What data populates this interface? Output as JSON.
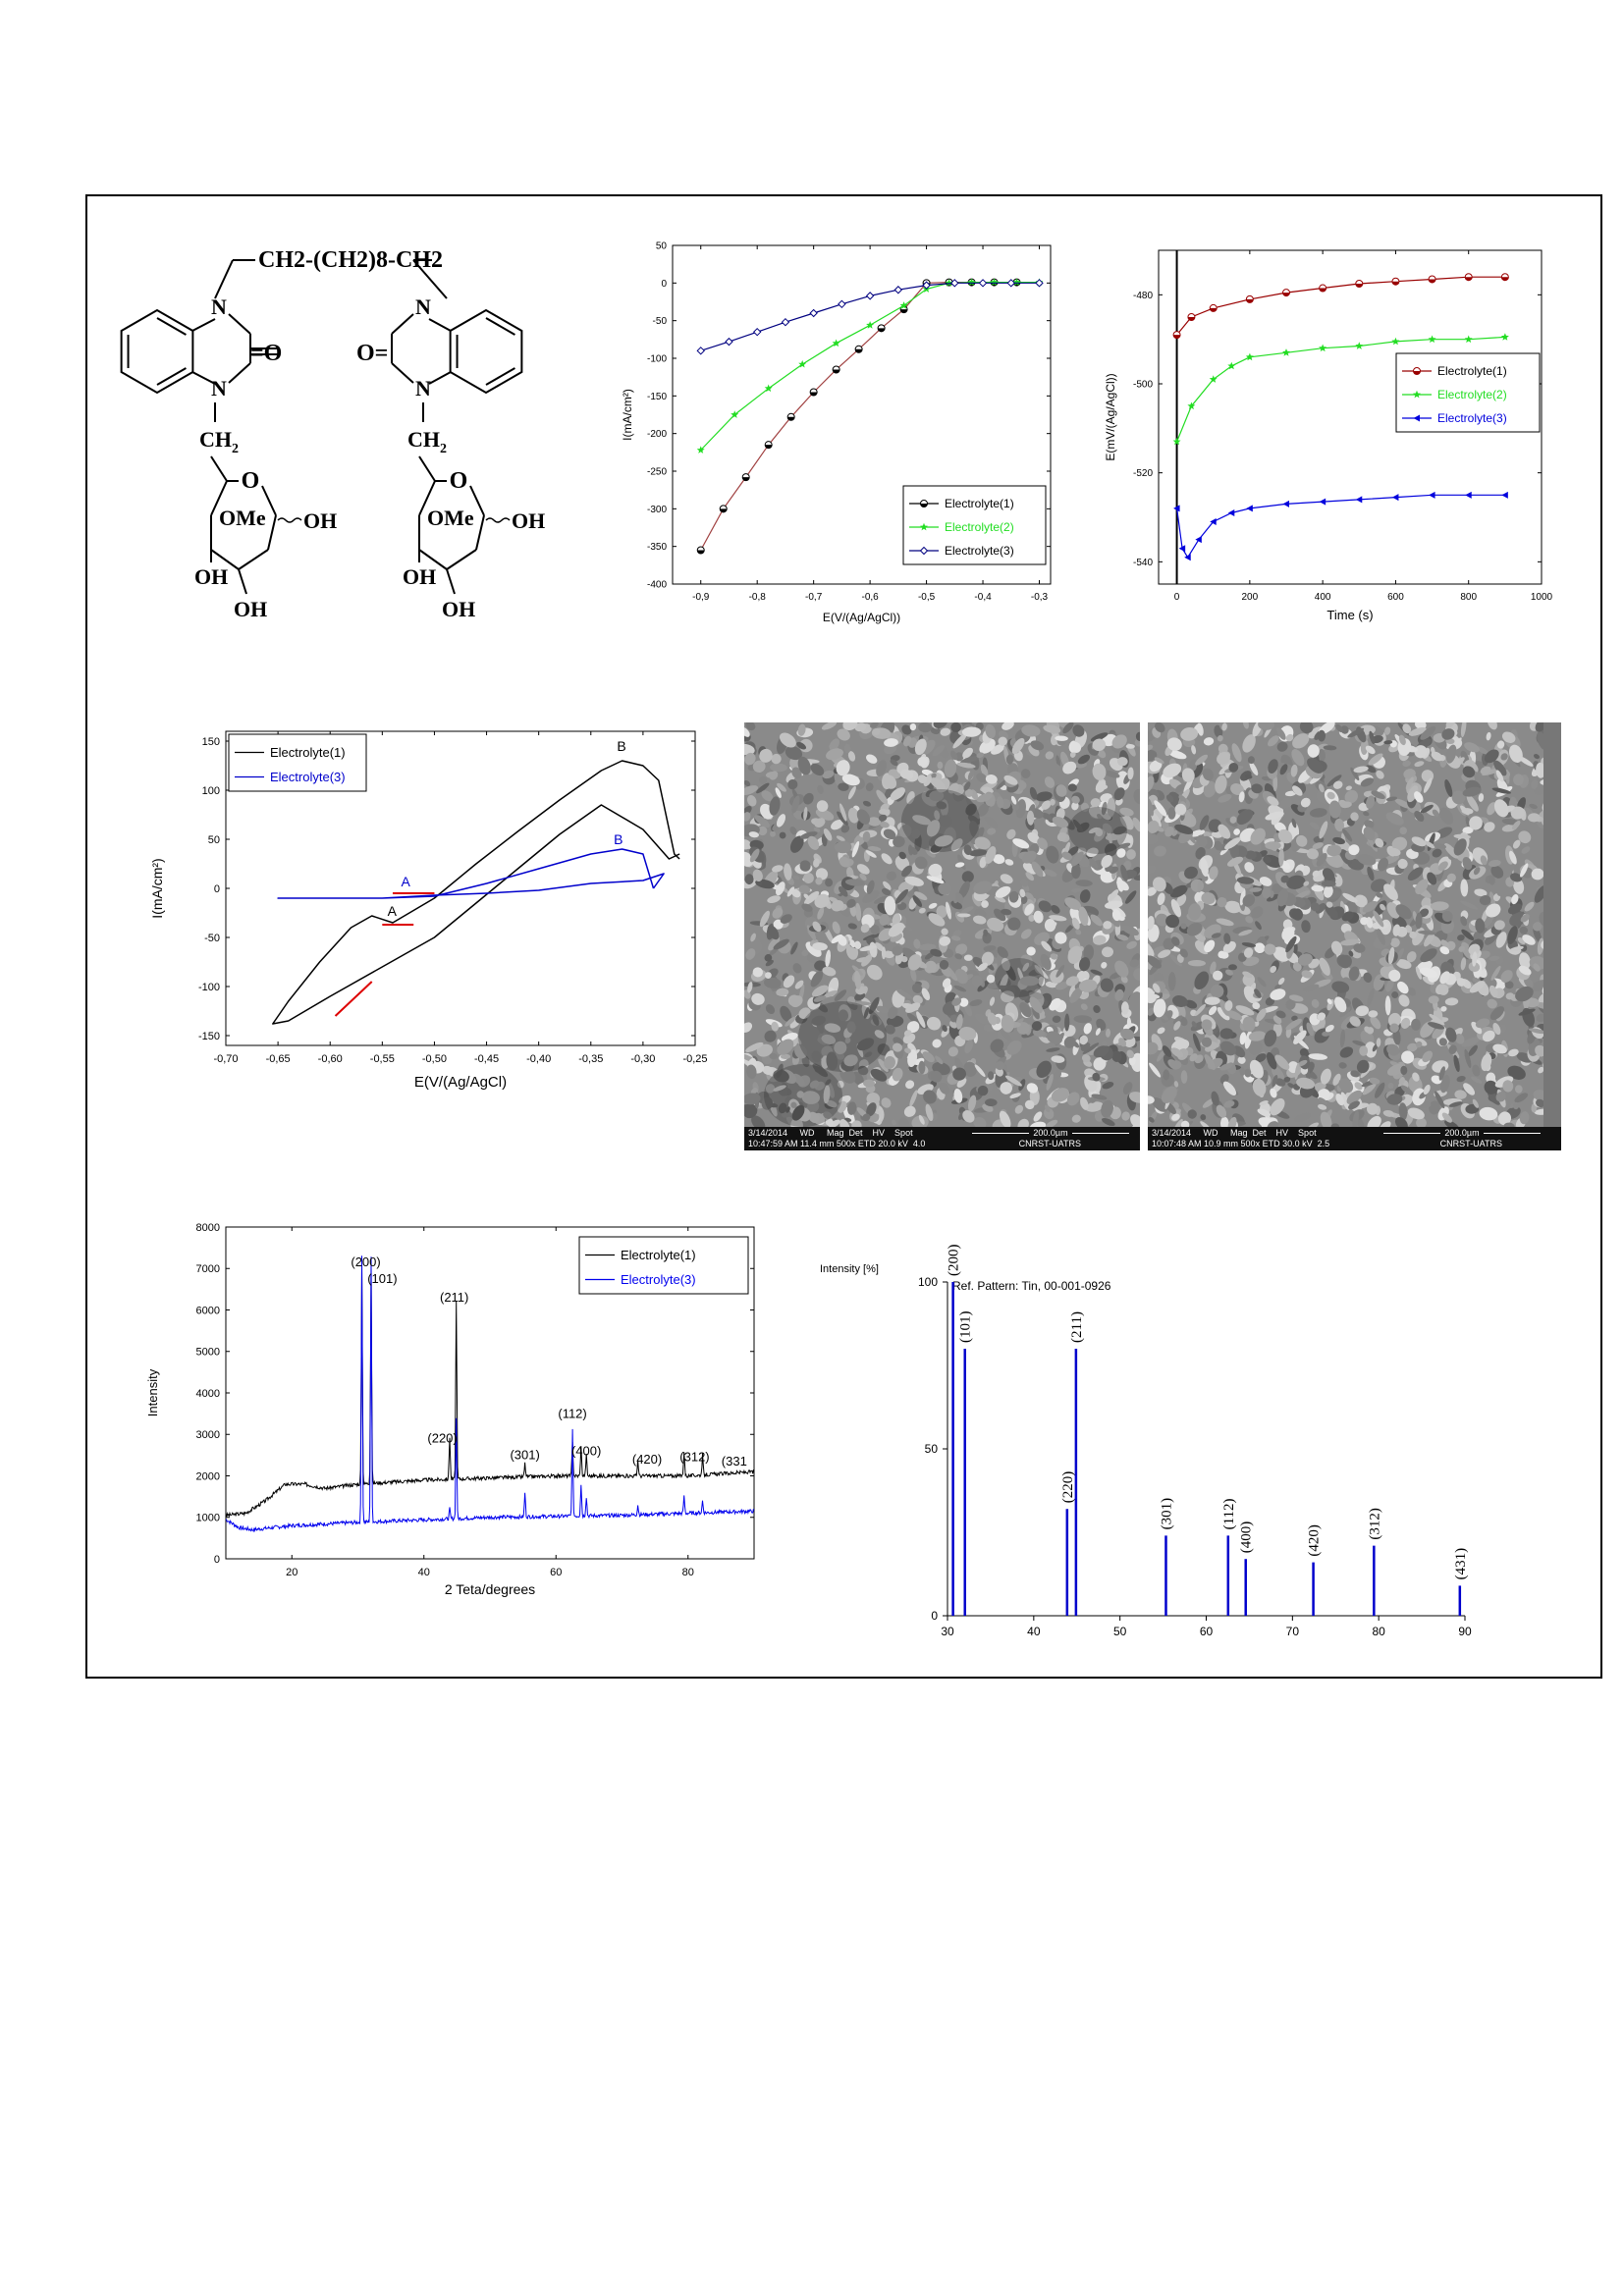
{
  "structure": {
    "chain": "CH2-(CH2)8-CH2",
    "n_label": "N",
    "o_label": "O",
    "ome_label": "OMe",
    "oh_label": "OH",
    "ch2_label": "CH2"
  },
  "polarization": {
    "ylabel": "I(mA/cm²)",
    "xlabel": "E(V/(Ag/AgCl))",
    "legend": [
      "Electrolyte(1)",
      "Electrolyte(2)",
      "Electrolyte(3)"
    ],
    "colors": [
      "#000000",
      "#22dd22",
      "#000080"
    ]
  },
  "potential_time": {
    "ylabel": "E(mV/(Ag/AgCl))",
    "xlabel": "Time (s)",
    "legend": [
      "Electrolyte(1)",
      "Electrolyte(2)",
      "Electrolyte(3)"
    ],
    "colors": [
      "#990000",
      "#22dd22",
      "#0000dd"
    ]
  },
  "cv": {
    "ylabel": "I(mA/cm²)",
    "xlabel": "E(V/(Ag/AgCl)",
    "legend": [
      "Electrolyte(1)",
      "Electrolyte(3)"
    ],
    "colors": [
      "#000000",
      "#0000cc"
    ],
    "peak_labels": [
      "A",
      "B"
    ]
  },
  "sem": [
    {
      "row1": "3/14/2014     WD     Mag  Det    HV    Spot",
      "row2": "10:47:59 AM 11.4 mm 500x ETD 20.0 kV  4.0",
      "scale": "200.0µm",
      "org": "CNRST-UATRS"
    },
    {
      "row1": "3/14/2014     WD     Mag  Det    HV    Spot",
      "row2": "10:07:48 AM 10.9 mm 500x ETD 30.0 kV  2.5",
      "scale": "200.0µm",
      "org": "CNRST-UATRS"
    }
  ],
  "xrd": {
    "ylabel": "Intensity",
    "xlabel": "2 Teta/degrees",
    "legend": [
      "Electrolyte(1)",
      "Electrolyte(3)"
    ],
    "colors": [
      "#000000",
      "#0000ee"
    ],
    "peak_labels": [
      "(200)",
      "(101)",
      "(211)",
      "(220)",
      "(301)",
      "(112)",
      "(400)",
      "(420)",
      "(312)",
      "(331"
    ]
  },
  "ref_pattern": {
    "ylabel": "Intensity [%]",
    "title": "Ref. Pattern: Tin, 00-001-0926",
    "color": "#0000cc"
  },
  "chart_data": [
    {
      "type": "line",
      "xlabel": "E(V/(Ag/AgCl))",
      "ylabel": "I(mA/cm²)",
      "xlim": [
        -0.95,
        -0.28
      ],
      "ylim": [
        -400,
        50
      ],
      "xticks": [
        "-0,9",
        "-0,8",
        "-0,7",
        "-0,6",
        "-0,5",
        "-0,4",
        "-0,3"
      ],
      "yticks": [
        "50",
        "0",
        "-50",
        "-100",
        "-150",
        "-200",
        "-250",
        "-300",
        "-350",
        "-400"
      ],
      "legend_position": "bottom-right",
      "series": [
        {
          "name": "Electrolyte(1)",
          "x": [
            -0.9,
            -0.86,
            -0.82,
            -0.78,
            -0.74,
            -0.7,
            -0.66,
            -0.62,
            -0.58,
            -0.54,
            -0.5,
            -0.46,
            -0.42,
            -0.38,
            -0.34
          ],
          "y": [
            -355,
            -300,
            -258,
            -215,
            -178,
            -145,
            -115,
            -88,
            -60,
            -35,
            0,
            1,
            1,
            1,
            1
          ]
        },
        {
          "name": "Electrolyte(2)",
          "x": [
            -0.9,
            -0.84,
            -0.78,
            -0.72,
            -0.66,
            -0.6,
            -0.54,
            -0.5,
            -0.46,
            -0.42,
            -0.38,
            -0.34,
            -0.3
          ],
          "y": [
            -222,
            -175,
            -140,
            -108,
            -80,
            -56,
            -30,
            -8,
            0,
            1,
            1,
            1,
            1
          ]
        },
        {
          "name": "Electrolyte(3)",
          "x": [
            -0.9,
            -0.85,
            -0.8,
            -0.75,
            -0.7,
            -0.65,
            -0.6,
            -0.55,
            -0.5,
            -0.45,
            -0.4,
            -0.35,
            -0.3
          ],
          "y": [
            -90,
            -78,
            -65,
            -52,
            -40,
            -28,
            -17,
            -9,
            -3,
            0,
            0,
            0,
            0
          ]
        }
      ]
    },
    {
      "type": "line",
      "xlabel": "Time (s)",
      "ylabel": "E(mV/(Ag/AgCl))",
      "xlim": [
        -50,
        1000
      ],
      "ylim": [
        -545,
        -470
      ],
      "xticks": [
        "0",
        "200",
        "400",
        "600",
        "800",
        "1000"
      ],
      "yticks": [
        "-480",
        "-500",
        "-520",
        "-540"
      ],
      "legend_position": "right",
      "series": [
        {
          "name": "Electrolyte(1)",
          "x": [
            0,
            40,
            100,
            200,
            300,
            400,
            500,
            600,
            700,
            800,
            900
          ],
          "y": [
            -489,
            -485,
            -483,
            -481,
            -479.5,
            -478.5,
            -477.5,
            -477,
            -476.5,
            -476,
            -476
          ]
        },
        {
          "name": "Electrolyte(2)",
          "x": [
            0,
            40,
            100,
            150,
            200,
            300,
            400,
            500,
            600,
            700,
            800,
            900
          ],
          "y": [
            -513,
            -505,
            -499,
            -496,
            -494,
            -493,
            -492,
            -491.5,
            -490.5,
            -490,
            -490,
            -489.5
          ]
        },
        {
          "name": "Electrolyte(3)",
          "x": [
            0,
            15,
            30,
            60,
            100,
            150,
            200,
            300,
            400,
            500,
            600,
            700,
            800,
            900
          ],
          "y": [
            -528,
            -537,
            -539,
            -535,
            -531,
            -529,
            -528,
            -527,
            -526.5,
            -526,
            -525.5,
            -525,
            -525,
            -525
          ]
        }
      ]
    },
    {
      "type": "line",
      "xlabel": "E(V/(Ag/AgCl)",
      "ylabel": "I(mA/cm²)",
      "xlim": [
        -0.7,
        -0.25
      ],
      "ylim": [
        -160,
        160
      ],
      "xticks": [
        "-0,70",
        "-0,65",
        "-0,60",
        "-0,55",
        "-0,50",
        "-0,45",
        "-0,40",
        "-0,35",
        "-0,30",
        "-0,25"
      ],
      "yticks": [
        "150",
        "100",
        "50",
        "0",
        "-50",
        "-100",
        "-150"
      ],
      "legend_position": "top-left",
      "series": [
        {
          "name": "Electrolyte(1)",
          "x": [
            -0.265,
            -0.27,
            -0.285,
            -0.3,
            -0.32,
            -0.34,
            -0.38,
            -0.42,
            -0.46,
            -0.5,
            -0.54,
            -0.56,
            -0.58,
            -0.61,
            -0.64,
            -0.655,
            -0.64,
            -0.6,
            -0.55,
            -0.5,
            -0.46,
            -0.42,
            -0.38,
            -0.34,
            -0.3,
            -0.275,
            -0.265
          ],
          "y": [
            30,
            35,
            110,
            125,
            130,
            120,
            90,
            58,
            25,
            -10,
            -35,
            -28,
            -40,
            -75,
            -115,
            -138,
            -135,
            -110,
            -80,
            -50,
            -15,
            20,
            55,
            85,
            60,
            30,
            35
          ]
        },
        {
          "name": "Electrolyte(3)",
          "x": [
            -0.29,
            -0.3,
            -0.32,
            -0.35,
            -0.4,
            -0.45,
            -0.5,
            -0.55,
            -0.6,
            -0.65,
            -0.6,
            -0.55,
            -0.5,
            -0.45,
            -0.4,
            -0.35,
            -0.3,
            -0.28,
            -0.29
          ],
          "y": [
            0,
            35,
            40,
            35,
            20,
            5,
            -8,
            -10,
            -10,
            -10,
            -10,
            -10,
            -7,
            -5,
            -2,
            5,
            8,
            15,
            0
          ]
        }
      ]
    },
    {
      "type": "line",
      "xlabel": "2 Teta/degrees",
      "ylabel": "Intensity",
      "xlim": [
        10,
        90
      ],
      "ylim": [
        0,
        8000
      ],
      "xticks": [
        "20",
        "40",
        "60",
        "80"
      ],
      "yticks": [
        "0",
        "1000",
        "2000",
        "3000",
        "4000",
        "5000",
        "6000",
        "7000",
        "8000"
      ],
      "legend_position": "top-right",
      "series": [
        {
          "name": "Electrolyte(1)",
          "baseline": [
            [
              10,
              1050
            ],
            [
              13,
              1100
            ],
            [
              16,
              1400
            ],
            [
              19,
              1800
            ],
            [
              22,
              1800
            ],
            [
              25,
              1700
            ],
            [
              30,
              1800
            ],
            [
              40,
              1900
            ],
            [
              60,
              2000
            ],
            [
              80,
              2000
            ],
            [
              90,
              2100
            ]
          ],
          "peaks": [
            [
              30.6,
              7100
            ],
            [
              32.0,
              7000
            ],
            [
              43.9,
              2950
            ],
            [
              44.9,
              6200
            ],
            [
              55.3,
              2300
            ],
            [
              62.5,
              2800
            ],
            [
              63.8,
              2700
            ],
            [
              64.6,
              2500
            ],
            [
              72.4,
              2400
            ],
            [
              79.4,
              2600
            ],
            [
              82.2,
              2500
            ]
          ]
        },
        {
          "name": "Electrolyte(3)",
          "baseline": [
            [
              10,
              950
            ],
            [
              12,
              750
            ],
            [
              14,
              700
            ],
            [
              20,
              800
            ],
            [
              30,
              880
            ],
            [
              50,
              1000
            ],
            [
              70,
              1050
            ],
            [
              90,
              1150
            ]
          ],
          "peaks": [
            [
              30.6,
              7350
            ],
            [
              32.0,
              7250
            ],
            [
              43.9,
              1200
            ],
            [
              44.9,
              3400
            ],
            [
              55.3,
              1600
            ],
            [
              62.5,
              3100
            ],
            [
              63.8,
              1800
            ],
            [
              64.6,
              1500
            ],
            [
              72.4,
              1300
            ],
            [
              79.4,
              1500
            ],
            [
              82.2,
              1400
            ]
          ]
        }
      ]
    },
    {
      "type": "bar",
      "title": "Ref. Pattern: Tin, 00-001-0926",
      "ylabel": "Intensity [%]",
      "xlim": [
        30,
        90
      ],
      "ylim": [
        0,
        100
      ],
      "xticks": [
        "30",
        "40",
        "50",
        "60",
        "70",
        "80",
        "90"
      ],
      "yticks": [
        "0",
        "50",
        "100"
      ],
      "peaks": [
        {
          "label": "(200)",
          "x": 30.64,
          "y": 100
        },
        {
          "label": "(101)",
          "x": 32.02,
          "y": 80
        },
        {
          "label": "(220)",
          "x": 43.87,
          "y": 32
        },
        {
          "label": "(211)",
          "x": 44.9,
          "y": 80
        },
        {
          "label": "(301)",
          "x": 55.33,
          "y": 24
        },
        {
          "label": "(112)",
          "x": 62.54,
          "y": 24
        },
        {
          "label": "(400)",
          "x": 64.58,
          "y": 17
        },
        {
          "label": "(420)",
          "x": 72.42,
          "y": 16
        },
        {
          "label": "(312)",
          "x": 79.45,
          "y": 21
        },
        {
          "label": "(431)",
          "x": 89.41,
          "y": 9
        }
      ]
    }
  ]
}
